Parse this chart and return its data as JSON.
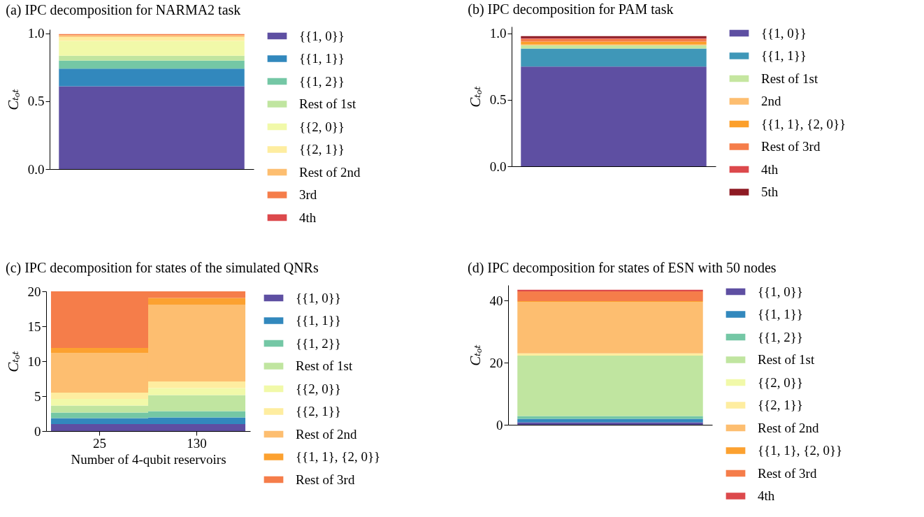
{
  "chart_data": [
    {
      "type": "bar",
      "title": "(a) IPC decomposition for NARMA2 task",
      "ylabel": "Cₜₒₜ",
      "categories": [
        null
      ],
      "stacked": true,
      "ylim": [
        0,
        1.03
      ],
      "yticks": [
        {
          "value": 0,
          "label": "0.0"
        },
        {
          "value": 0.5,
          "label": "0.5"
        },
        {
          "value": 1,
          "label": "1.0"
        }
      ],
      "tick_labels": "y",
      "legend": "right",
      "series": [
        {
          "name": "{{1, 0}}",
          "color": "#5e4fa2",
          "values": [
            0.61
          ]
        },
        {
          "name": "{{1, 1}}",
          "color": "#3288bd",
          "values": [
            0.13
          ]
        },
        {
          "name": "{{1, 2}}",
          "color": "#74c7a5",
          "values": [
            0.06
          ]
        },
        {
          "name": "Rest of 1st",
          "color": "#c0e5a0",
          "values": [
            0.035
          ]
        },
        {
          "name": "{{2, 0}}",
          "color": "#f1f9a9",
          "values": [
            0.11
          ]
        },
        {
          "name": "{{2, 1}}",
          "color": "#feeda0",
          "values": [
            0.03
          ]
        },
        {
          "name": "Rest of 2nd",
          "color": "#fdbe70",
          "values": [
            0.013
          ]
        },
        {
          "name": "3rd",
          "color": "#f57d4a",
          "values": [
            0.007
          ]
        },
        {
          "name": "4th",
          "color": "#dc494c",
          "values": [
            null
          ]
        }
      ]
    },
    {
      "type": "bar",
      "title": "(b) IPC decomposition for PAM task",
      "ylabel": "Cₜₒₜ",
      "categories": [
        null
      ],
      "stacked": true,
      "ylim": [
        0,
        1.05
      ],
      "yticks": [
        {
          "value": 0,
          "label": "0.0"
        },
        {
          "value": 0.5,
          "label": "0.5"
        },
        {
          "value": 1,
          "label": "1.0"
        }
      ],
      "tick_labels": "y",
      "legend": "right",
      "series": [
        {
          "name": "{{1, 0}}",
          "color": "#5e4fa2",
          "values": [
            0.75
          ]
        },
        {
          "name": "{{1, 1}}",
          "color": "#3f97b8",
          "values": [
            0.135
          ]
        },
        {
          "name": "Rest of 1st",
          "color": "#c5e6a0",
          "values": [
            0.025
          ]
        },
        {
          "name": "2nd",
          "color": "#fdbe70",
          "values": [
            0.005
          ]
        },
        {
          "name": "{{1, 1}, {2, 0}}",
          "color": "#fc9f2a",
          "values": [
            0.022
          ]
        },
        {
          "name": "Rest of 3rd",
          "color": "#f57d4a",
          "values": [
            0.02
          ]
        },
        {
          "name": "4th",
          "color": "#dc494c",
          "values": [
            0.005
          ]
        },
        {
          "name": "5th",
          "color": "#8e1a23",
          "values": [
            0.016
          ]
        }
      ]
    },
    {
      "type": "bar",
      "title": "(c) IPC decomposition for states of the simulated QNRs",
      "xlabel": "Number of 4-qubit reservoirs",
      "ylabel": "Cₜₒₜ",
      "categories": [
        "25",
        "130"
      ],
      "stacked": true,
      "ylim": [
        0,
        20
      ],
      "yticks": [
        0,
        5,
        10,
        15,
        20
      ],
      "legend": "right",
      "series": [
        {
          "name": "{{1, 0}}",
          "color": "#5e4fa2",
          "values": [
            1.0,
            1.0
          ]
        },
        {
          "name": "{{1, 1}}",
          "color": "#3288bd",
          "values": [
            0.85,
            0.95
          ]
        },
        {
          "name": "{{1, 2}}",
          "color": "#74c7a5",
          "values": [
            0.8,
            0.9
          ]
        },
        {
          "name": "Rest of 1st",
          "color": "#c0e5a0",
          "values": [
            1.0,
            2.3
          ]
        },
        {
          "name": "{{2, 0}}",
          "color": "#f1f9a9",
          "values": [
            0.95,
            1.0
          ]
        },
        {
          "name": "{{2, 1}}",
          "color": "#feeda0",
          "values": [
            0.9,
            0.95
          ]
        },
        {
          "name": "Rest of 2nd",
          "color": "#fdbe70",
          "values": [
            5.65,
            11.0
          ]
        },
        {
          "name": "{{1, 1}, {2, 0}}",
          "color": "#fca130",
          "values": [
            0.75,
            0.95
          ]
        },
        {
          "name": "Rest of 3rd",
          "color": "#f57d4a",
          "values": [
            8.1,
            0.95
          ]
        }
      ]
    },
    {
      "type": "bar",
      "title": "(d) IPC decomposition for states of ESN with 50 nodes",
      "ylabel": "Cₜₒₜ",
      "categories": [
        null
      ],
      "stacked": true,
      "ylim": [
        0,
        45
      ],
      "yticks": [
        0,
        20,
        40
      ],
      "tick_labels": "y",
      "legend": "right",
      "series": [
        {
          "name": "{{1, 0}}",
          "color": "#5e4fa2",
          "values": [
            0.8
          ]
        },
        {
          "name": "{{1, 1}}",
          "color": "#3288bd",
          "values": [
            1.1
          ]
        },
        {
          "name": "{{1, 2}}",
          "color": "#74c7a5",
          "values": [
            0.9
          ]
        },
        {
          "name": "Rest of 1st",
          "color": "#c0e5a0",
          "values": [
            19.5
          ]
        },
        {
          "name": "{{2, 0}}",
          "color": "#f1f9a9",
          "values": [
            null
          ]
        },
        {
          "name": "{{2, 1}}",
          "color": "#feeda0",
          "values": [
            0.7
          ]
        },
        {
          "name": "Rest of 2nd",
          "color": "#fdbe70",
          "values": [
            16.6
          ]
        },
        {
          "name": "{{1, 1}, {2, 0}}",
          "color": "#fca130",
          "values": [
            0.2
          ]
        },
        {
          "name": "Rest of 3rd",
          "color": "#f57d4a",
          "values": [
            3.2
          ]
        },
        {
          "name": "4th",
          "color": "#dc494c",
          "values": [
            0.5
          ]
        }
      ]
    }
  ]
}
